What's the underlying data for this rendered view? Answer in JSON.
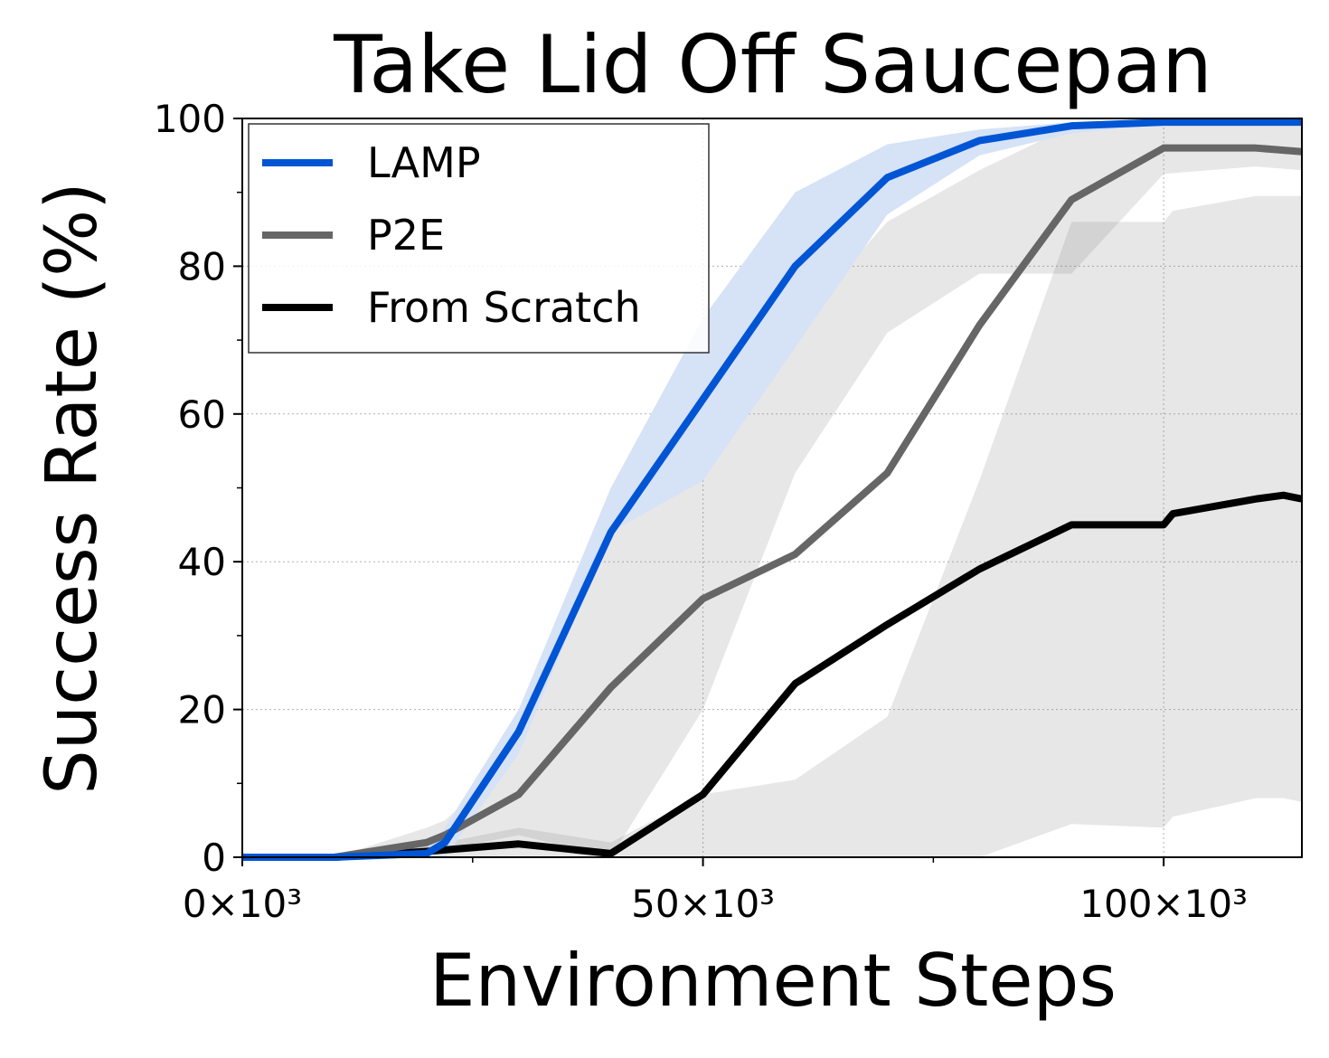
{
  "chart_data": {
    "type": "line",
    "title": "Take Lid Off Saucepan",
    "xlabel": "Environment Steps",
    "ylabel": "Success Rate (%)",
    "xlim": [
      0,
      115000
    ],
    "ylim": [
      0,
      100
    ],
    "x_ticks": [
      0,
      50000,
      100000
    ],
    "x_tick_labels": [
      "0×10³",
      "50×10³",
      "100×10³"
    ],
    "y_ticks": [
      0,
      20,
      40,
      60,
      80,
      100
    ],
    "y_tick_labels": [
      "0",
      "20",
      "40",
      "60",
      "80",
      "100"
    ],
    "grid": true,
    "legend_position": "top-left",
    "series": [
      {
        "name": "LAMP",
        "color": "#0055d4",
        "band_color": "#d6e2f6",
        "x": [
          0,
          10000,
          20000,
          22000,
          30000,
          40000,
          50000,
          60000,
          70000,
          80000,
          90000,
          100000,
          110000,
          115000
        ],
        "values": [
          0,
          0,
          0.5,
          2,
          17,
          44,
          62,
          80,
          92,
          97,
          99,
          99.5,
          99.5,
          99.5
        ],
        "lower": [
          0,
          0,
          0,
          0,
          14,
          44,
          51,
          69,
          87,
          95,
          98,
          99.2,
          99.2,
          99.2
        ],
        "upper": [
          0,
          0,
          1,
          4,
          20,
          50,
          73,
          90,
          96.5,
          98.5,
          99.5,
          99.8,
          99.8,
          99.8
        ]
      },
      {
        "name": "P2E",
        "color": "#666666",
        "band_color": "rgba(120,120,120,0.18)",
        "x": [
          0,
          10000,
          20000,
          22000,
          30000,
          40000,
          50000,
          60000,
          70000,
          80000,
          90000,
          100000,
          110000,
          115000
        ],
        "values": [
          0,
          0,
          2,
          3,
          8.5,
          23,
          35,
          41,
          52,
          72,
          89,
          96,
          96,
          95.5
        ],
        "lower": [
          0,
          0,
          0.5,
          1,
          3,
          0,
          20,
          52,
          71,
          79,
          79,
          92.5,
          93.5,
          93
        ],
        "upper": [
          0,
          0,
          4,
          5,
          14,
          46,
          51,
          72,
          86,
          93,
          99,
          99.5,
          99.5,
          99.5
        ]
      },
      {
        "name": "From Scratch",
        "color": "#000000",
        "band_color": "rgba(120,120,120,0.18)",
        "x": [
          0,
          10000,
          20000,
          30000,
          40000,
          50000,
          60000,
          70000,
          80000,
          90000,
          100000,
          101000,
          110000,
          113000,
          115000
        ],
        "values": [
          0,
          0,
          0.8,
          1.8,
          0.5,
          8.5,
          23.5,
          31.5,
          39,
          45,
          45,
          46.5,
          48.5,
          49,
          48.5
        ],
        "lower": [
          0,
          0,
          0,
          0,
          0,
          0,
          0,
          0,
          0,
          4.5,
          4,
          5.5,
          8,
          8,
          7.5
        ],
        "upper": [
          0,
          0,
          1.5,
          4,
          2,
          8.5,
          10.5,
          19,
          51,
          86,
          86,
          87.5,
          89.5,
          89.5,
          89.5
        ]
      }
    ]
  }
}
